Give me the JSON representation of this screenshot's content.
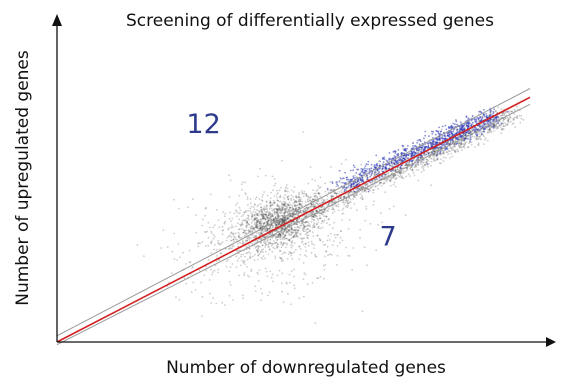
{
  "chart_data": {
    "type": "scatter",
    "title": "Screening of differentially expressed genes",
    "xlabel": "Number of downregulated genes",
    "ylabel": "Number of upregulated genes",
    "annotations": [
      {
        "name": "upregulated-count",
        "text": "12",
        "x": 0.31,
        "y": 0.78
      },
      {
        "name": "downregulated-count",
        "text": "7",
        "x": 0.7,
        "y": 0.36
      }
    ],
    "xlim": [
      0,
      1
    ],
    "ylim": [
      0,
      1
    ],
    "grid": false,
    "legend": "none",
    "colors": {
      "background_points": "#222222",
      "highlighted_points": "#2a36b8",
      "fit_line": "#d42020",
      "band_lines": "#9a9a9a",
      "count_text": "#2e3a8c"
    },
    "lines": [
      {
        "name": "fit-line",
        "x": [
          0.0,
          1.0
        ],
        "y": [
          0.0,
          0.913
        ]
      },
      {
        "name": "upper-band-line",
        "x": [
          0.0,
          1.0
        ],
        "y": [
          0.023,
          0.946
        ]
      },
      {
        "name": "lower-band-line",
        "x": [
          0.0,
          1.0
        ],
        "y": [
          -0.01,
          0.887
        ]
      }
    ],
    "point_groups": [
      {
        "name": "core-cloud",
        "center": [
          0.47,
          0.45
        ],
        "spread": [
          0.045,
          0.05
        ],
        "corr": 0.45,
        "count": 1300,
        "color": "background_points"
      },
      {
        "name": "broad-cloud",
        "center": [
          0.45,
          0.4
        ],
        "spread": [
          0.1,
          0.11
        ],
        "corr": 0.3,
        "count": 650,
        "color": "background_points"
      },
      {
        "name": "diagonal-tail",
        "from": [
          0.52,
          0.47
        ],
        "to": [
          0.96,
          0.85
        ],
        "jitter": 0.018,
        "count": 1400,
        "color": "background_points"
      },
      {
        "name": "highlighted-band",
        "from": [
          0.6,
          0.58
        ],
        "to": [
          0.92,
          0.84
        ],
        "jitter": 0.016,
        "count": 900,
        "color": "highlighted_points"
      }
    ]
  }
}
